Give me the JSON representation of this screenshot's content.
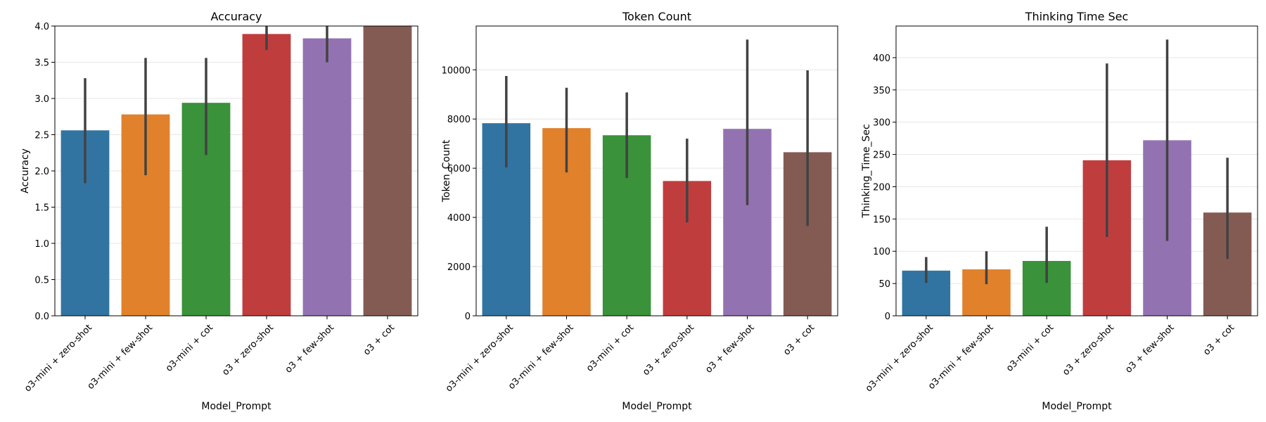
{
  "palette": [
    "#3274a1",
    "#e1812c",
    "#3a923a",
    "#c03d3e",
    "#9372b2",
    "#845b53"
  ],
  "errorbar_color": "#424242",
  "chart_data": [
    {
      "type": "bar",
      "title": "Accuracy",
      "xlabel": "Model_Prompt",
      "ylabel": "Accuracy",
      "categories": [
        "o3-mini + zero-shot",
        "o3-mini + few-shot",
        "o3-mini + cot",
        "o3 + zero-shot",
        "o3 + few-shot",
        "o3 + cot"
      ],
      "values": [
        2.56,
        2.78,
        2.94,
        3.89,
        3.83,
        4.0
      ],
      "error_low": [
        1.83,
        1.94,
        2.22,
        3.67,
        3.5,
        4.0
      ],
      "error_high": [
        3.28,
        3.56,
        3.56,
        4.0,
        4.0,
        4.0
      ],
      "ylim": [
        0,
        4.0
      ],
      "yticks": [
        0.0,
        0.5,
        1.0,
        1.5,
        2.0,
        2.5,
        3.0,
        3.5,
        4.0
      ],
      "ytick_labels": [
        "0.0",
        "0.5",
        "1.0",
        "1.5",
        "2.0",
        "2.5",
        "3.0",
        "3.5",
        "4.0"
      ],
      "grid": "y"
    },
    {
      "type": "bar",
      "title": "Token Count",
      "xlabel": "Model_Prompt",
      "ylabel": "Token_Count",
      "categories": [
        "o3-mini + zero-shot",
        "o3-mini + few-shot",
        "o3-mini + cot",
        "o3 + zero-shot",
        "o3 + few-shot",
        "o3 + cot"
      ],
      "values": [
        7830,
        7630,
        7340,
        5480,
        7600,
        6650
      ],
      "error_low": [
        6030,
        5830,
        5600,
        3800,
        4500,
        3650
      ],
      "error_high": [
        9750,
        9270,
        9080,
        7200,
        11230,
        9980
      ],
      "ylim": [
        0,
        11780
      ],
      "yticks": [
        0,
        2000,
        4000,
        6000,
        8000,
        10000
      ],
      "ytick_labels": [
        "0",
        "2000",
        "4000",
        "6000",
        "8000",
        "10000"
      ],
      "grid": "y"
    },
    {
      "type": "bar",
      "title": "Thinking Time Sec",
      "xlabel": "Model_Prompt",
      "ylabel": "Thinking_Time_Sec",
      "categories": [
        "o3-mini + zero-shot",
        "o3-mini + few-shot",
        "o3-mini + cot",
        "o3 + zero-shot",
        "o3 + few-shot",
        "o3 + cot"
      ],
      "values": [
        70,
        72,
        85,
        241,
        272,
        160
      ],
      "error_low": [
        51,
        49,
        51,
        122,
        116,
        88
      ],
      "error_high": [
        91,
        100,
        138,
        391,
        428,
        245
      ],
      "ylim": [
        0,
        449
      ],
      "yticks": [
        0,
        50,
        100,
        150,
        200,
        250,
        300,
        350,
        400
      ],
      "ytick_labels": [
        "0",
        "50",
        "100",
        "150",
        "200",
        "250",
        "300",
        "350",
        "400"
      ],
      "grid": "y"
    }
  ]
}
